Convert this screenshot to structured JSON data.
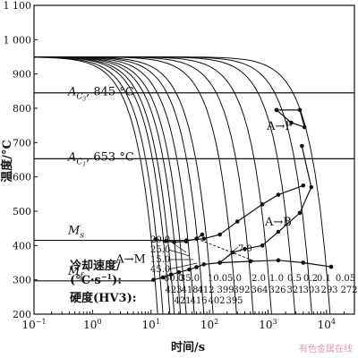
{
  "chart_data": {
    "type": "line",
    "title": "",
    "xlabel": "时间/s",
    "ylabel": "温度/°C",
    "x_scale": "log",
    "xlim": [
      0.1,
      30000
    ],
    "ylim": [
      200,
      1100
    ],
    "x_ticks": [
      0.1,
      1,
      10,
      100,
      1000,
      10000
    ],
    "x_tick_labels": [
      [
        "10",
        "−1"
      ],
      [
        "10",
        "0"
      ],
      [
        "10",
        "1"
      ],
      [
        "10",
        "2"
      ],
      [
        "10",
        "3"
      ],
      [
        "10",
        "4"
      ]
    ],
    "y_ticks": [
      200,
      300,
      400,
      500,
      600,
      700,
      800,
      900,
      1000,
      1100
    ],
    "y_tick_labels": [
      "200",
      "300",
      "400",
      "500",
      "600",
      "700",
      "800",
      "900",
      "1 000",
      "1 100"
    ],
    "reference_lines": [
      {
        "name": "AC3",
        "y": 845,
        "label_main": "A",
        "label_sub": "C",
        "label_sub2": "3",
        "label_value": ", 845 °C"
      },
      {
        "name": "AC1",
        "y": 653,
        "label_main": "A",
        "label_sub": "C",
        "label_sub2": "1",
        "label_value": ", 653 °C"
      },
      {
        "name": "Ms",
        "y": 415,
        "label_main": "M",
        "label_sub": "s",
        "label_sub2": "",
        "label_value": ""
      },
      {
        "name": "Mf",
        "y": 297,
        "label_main": "M",
        "label_sub": "f",
        "label_sub2": "",
        "label_value": ""
      }
    ],
    "start_temp": 950,
    "cooling_rates": [
      60.0,
      45.0,
      35.0,
      25.0,
      20.0,
      15.0,
      10.0,
      7.0,
      5.0,
      2.0,
      1.0,
      0.5,
      0.2,
      0.1,
      0.05
    ],
    "cooling_curve_end_times": [
      13,
      16,
      21,
      25,
      32,
      40,
      55,
      80,
      115,
      290,
      560,
      1150,
      2900,
      5600,
      11500
    ],
    "transformation_lines": [
      {
        "name": "ferrite-start",
        "points": [
          [
            1400,
            795
          ],
          [
            3500,
            795
          ],
          [
            4200,
            745
          ],
          [
            2500,
            758
          ],
          [
            1400,
            795
          ]
        ]
      },
      {
        "name": "bainite-start",
        "points": [
          [
            40,
            415
          ],
          [
            80,
            420
          ],
          [
            150,
            432
          ],
          [
            300,
            470
          ],
          [
            800,
            520
          ],
          [
            1500,
            548
          ],
          [
            4000,
            575
          ]
        ]
      },
      {
        "name": "martensite-finish",
        "points": [
          [
            11,
            300
          ],
          [
            16,
            307
          ],
          [
            22,
            315
          ],
          [
            30,
            322
          ],
          [
            45,
            330
          ],
          [
            60,
            337
          ],
          [
            80,
            345
          ],
          [
            150,
            350
          ],
          [
            500,
            354
          ],
          [
            1500,
            357
          ],
          [
            4000,
            350
          ],
          [
            12000,
            338
          ]
        ]
      },
      {
        "name": "ms-curve",
        "points": [
          [
            12,
            418
          ],
          [
            18,
            413
          ],
          [
            25,
            410
          ],
          [
            40,
            412
          ],
          [
            60,
            420
          ],
          [
            75,
            432
          ]
        ]
      },
      {
        "name": "bainite-finish",
        "points": [
          [
            150,
            350
          ],
          [
            250,
            380
          ],
          [
            400,
            390
          ],
          [
            800,
            400
          ],
          [
            1500,
            440
          ],
          [
            3500,
            495
          ],
          [
            5500,
            570
          ],
          [
            3800,
            690
          ]
        ]
      }
    ],
    "dashed_lines": [
      {
        "name": "bainite-boundary-dashed",
        "points": [
          [
            60,
            420
          ],
          [
            600,
            354
          ]
        ]
      }
    ],
    "region_labels": [
      {
        "name": "A-F",
        "text": "A→F",
        "x": 1600,
        "y": 737
      },
      {
        "name": "A-B",
        "text": "A→B",
        "x": 1500,
        "y": 458
      },
      {
        "name": "A-M",
        "text": "A→M",
        "x": 4.5,
        "y": 350
      }
    ],
    "rate_labels_bottom": [
      "60.0",
      "35.0",
      "10.0",
      "5.0",
      "2.0",
      "1.0",
      "0.5",
      "0.2",
      "0.1",
      "0.05"
    ],
    "hardness_row1": [
      "423",
      "418",
      "412",
      "399",
      "392",
      "364",
      "326",
      "321",
      "303",
      "293",
      "272"
    ],
    "hardness_row2": [
      "421",
      "416",
      "402",
      "395"
    ],
    "rate_labels_stack": [
      "20.0",
      "25.0",
      "15.0",
      "45.0"
    ],
    "rate_label_7": "7.0",
    "legend_cooling_rate": "冷却速度/",
    "legend_cooling_unit": "(°C·s",
    "legend_cooling_unit_sup": "−1",
    "legend_cooling_unit_tail": "):",
    "legend_hardness": "硬度(HV3):"
  },
  "watermark": "有色金属在线"
}
